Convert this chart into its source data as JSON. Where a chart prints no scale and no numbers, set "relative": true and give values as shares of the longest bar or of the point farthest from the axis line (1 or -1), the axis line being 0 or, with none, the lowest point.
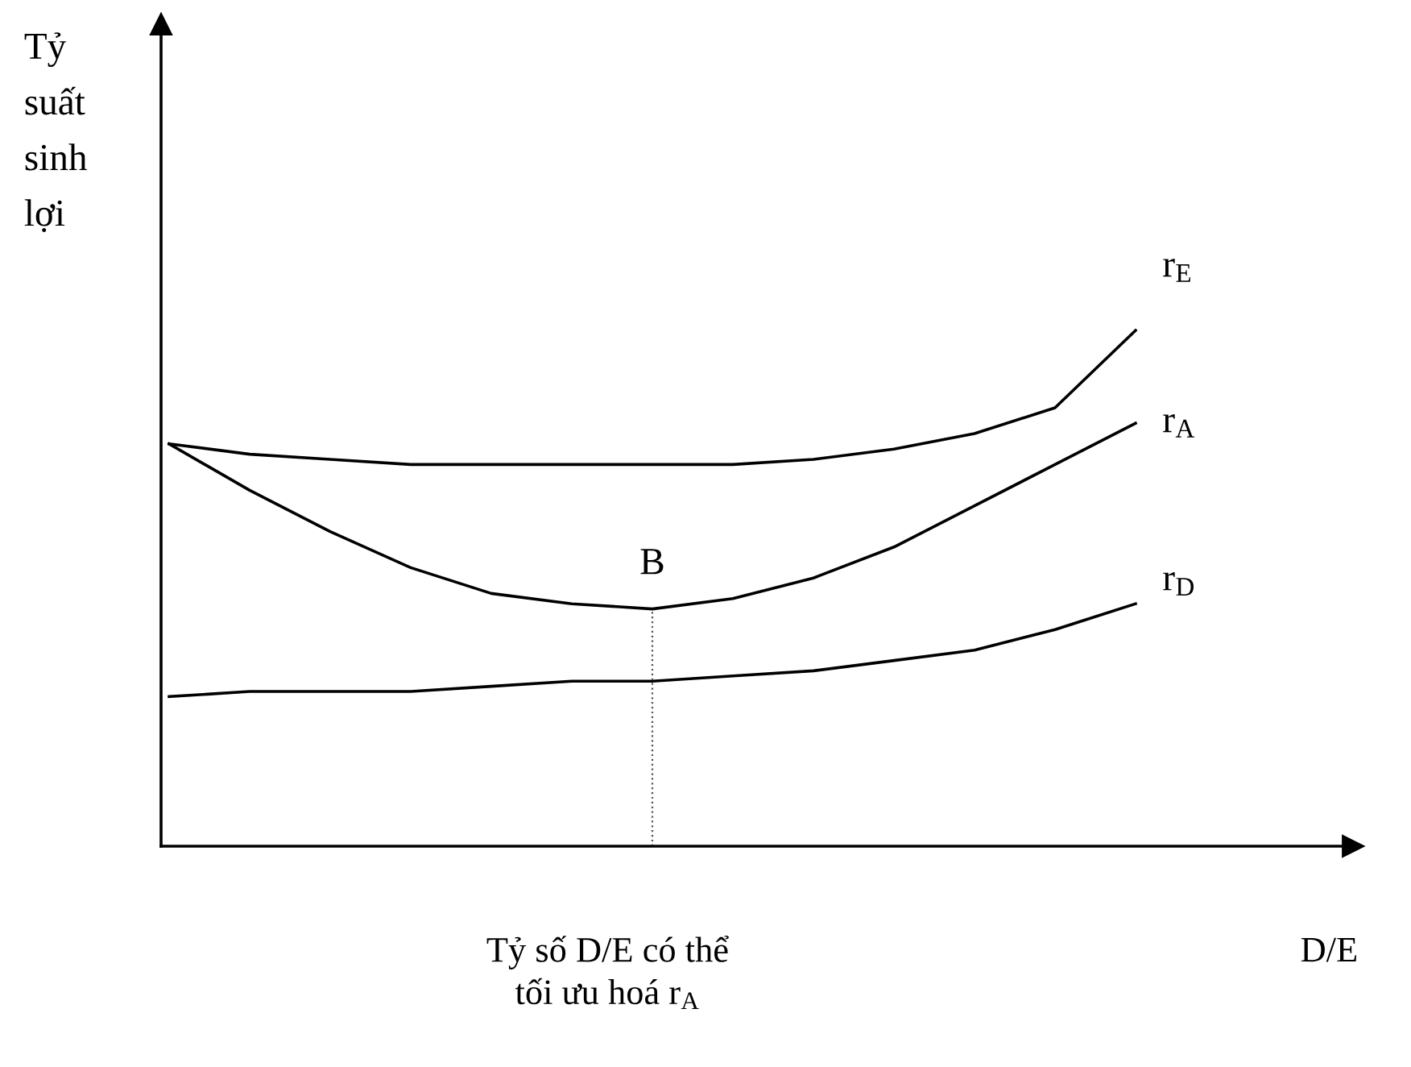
{
  "chart_data": {
    "type": "line",
    "relative": true,
    "xlabel": "D/E",
    "ylabel": "Tỷ\nsuất\nsinh\nlợi",
    "categories": [
      null,
      null,
      null,
      null,
      null,
      null,
      null,
      null,
      null,
      null,
      null,
      null,
      null
    ],
    "series": [
      {
        "name": "r$_{E}$",
        "color": "#000000",
        "values": [
          0.78,
          0.76,
          0.75,
          0.74,
          0.74,
          0.74,
          0.74,
          0.74,
          0.75,
          0.77,
          0.8,
          0.85,
          1.0
        ]
      },
      {
        "name": "r$_{A}$",
        "color": "#000000",
        "values": [
          0.78,
          0.69,
          0.61,
          0.54,
          0.49,
          0.47,
          0.46,
          0.48,
          0.52,
          0.58,
          0.66,
          0.74,
          0.82
        ]
      },
      {
        "name": "r$_{D}$",
        "color": "#000000",
        "values": [
          0.29,
          0.3,
          0.3,
          0.3,
          0.31,
          0.32,
          0.32,
          0.33,
          0.34,
          0.36,
          0.38,
          0.42,
          0.47
        ]
      }
    ],
    "annotations": [
      "B",
      "Tỷ số D/E có thể\ntối ưu hoá r$_{A}$"
    ],
    "grid": false,
    "legend": false,
    "marker": "none",
    "line_style": "solid"
  }
}
